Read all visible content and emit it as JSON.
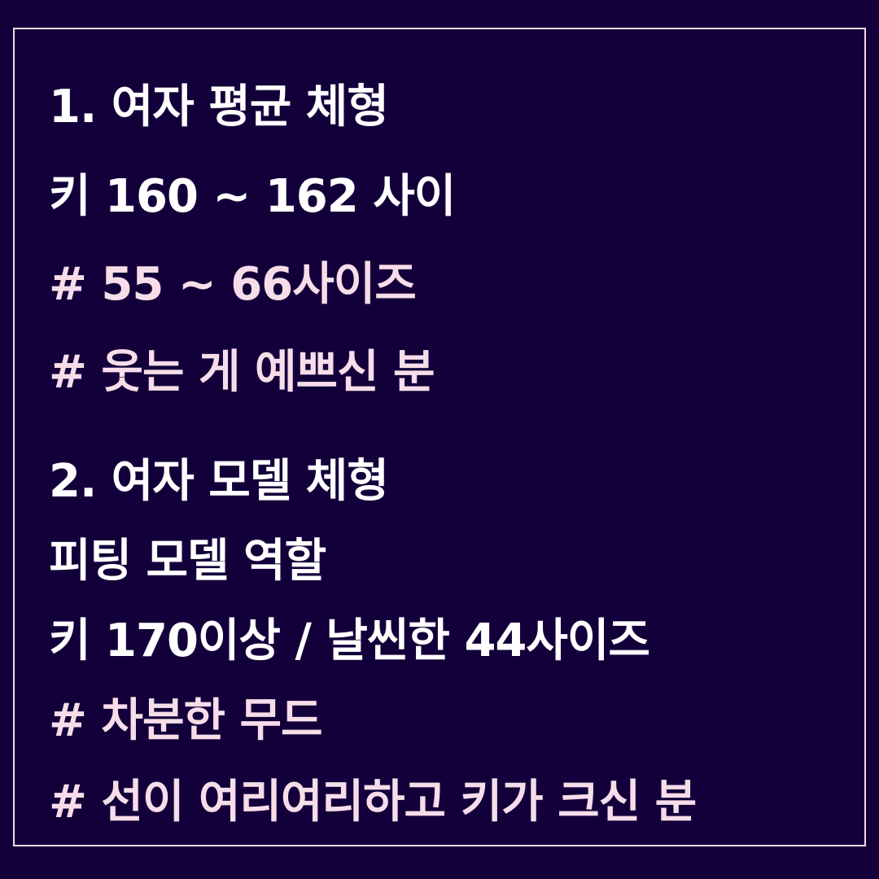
{
  "colors": {
    "background": "#13003a",
    "border": "#f3d8e4",
    "heading_text": "#ffffff",
    "hashtag_text": "#f7dde9"
  },
  "section1": {
    "title": "1. 여자 평균 체형",
    "spec": "키 160 ~ 162 사이",
    "tags": [
      "# 55 ~ 66사이즈",
      "# 웃는 게 예쁘신 분"
    ]
  },
  "section2": {
    "title": "2. 여자 모델 체형",
    "role": "피팅 모델 역할",
    "spec": "키 170이상 / 날씬한 44사이즈",
    "tags": [
      "# 차분한 무드",
      "# 선이 여리여리하고 키가 크신 분"
    ]
  }
}
